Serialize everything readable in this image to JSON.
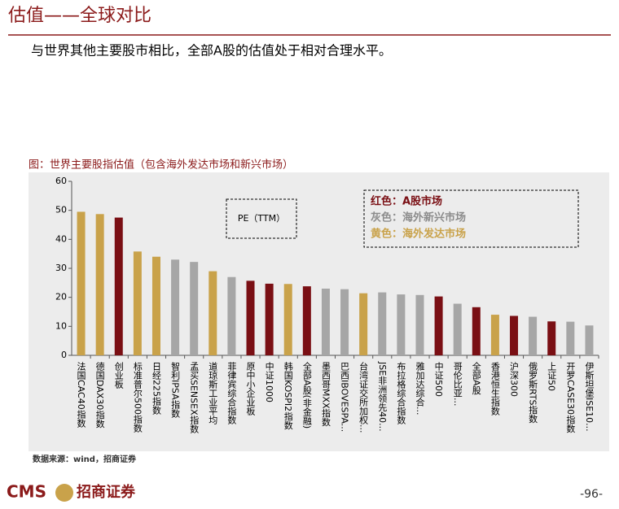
{
  "header": {
    "title": "估值——全球对比",
    "subtitle": "与世界其他主要股市相比，全部A股的估值处于相对合理水平。"
  },
  "chart_data": {
    "type": "bar",
    "title": "图：世界主要股指估值（包含海外发达市场和新兴市场）",
    "categories": [
      "法国CAC40指数",
      "德国DAX30指数",
      "创业板",
      "标准普尔500指数",
      "日经225指数",
      "智利IPSA指数",
      "孟买SENSEX指数",
      "道琼斯工业平均",
      "菲律宾综合指数",
      "原中小企业板",
      "中证1000",
      "韩国KOSPI2指数",
      "全部A股(非金融)",
      "墨西哥MXX指数",
      "巴西IBOVESPA...",
      "台湾证交所加权...",
      "JSE非洲领先40...",
      "布拉格综合指数",
      "雅加达综合...",
      "中证500",
      "哥伦比亚...",
      "全部A股",
      "香港恒生指数",
      "沪深300",
      "俄罗斯RTS指数",
      "上证50",
      "开罗CASE30指数",
      "伊斯坦堡ISE10..."
    ],
    "values": [
      49.5,
      48.7,
      47.5,
      35.8,
      34,
      33,
      32.2,
      29,
      27,
      25.7,
      24.7,
      24.6,
      23.8,
      23,
      22.8,
      21.4,
      21.7,
      21,
      20.8,
      20.3,
      17.8,
      16.6,
      14,
      13.6,
      13.3,
      11.7,
      11.6,
      10.3
    ],
    "colors": [
      "#c9a24a",
      "#c9a24a",
      "#7a0f14",
      "#c9a24a",
      "#c9a24a",
      "#a6a6a6",
      "#a6a6a6",
      "#c9a24a",
      "#a6a6a6",
      "#7a0f14",
      "#7a0f14",
      "#c9a24a",
      "#7a0f14",
      "#a6a6a6",
      "#a6a6a6",
      "#c9a24a",
      "#a6a6a6",
      "#a6a6a6",
      "#a6a6a6",
      "#7a0f14",
      "#a6a6a6",
      "#7a0f14",
      "#c9a24a",
      "#7a0f14",
      "#a6a6a6",
      "#7a0f14",
      "#a6a6a6",
      "#a6a6a6"
    ],
    "ylim": [
      0,
      60
    ],
    "yticks": [
      0,
      10,
      20,
      30,
      40,
      50,
      60
    ],
    "annotation": "PE（TTM）",
    "color_key": [
      {
        "text": "红色：A股市场",
        "color": "#7a0f14"
      },
      {
        "text": "灰色：海外新兴市场",
        "color": "#8c8c8c"
      },
      {
        "text": "黄色：海外发达市场",
        "color": "#c9a24a"
      }
    ],
    "source": "数据来源：wind，招商证券"
  },
  "footer": {
    "logo": "CMS",
    "brand": "招商证券",
    "page": "-96-"
  }
}
